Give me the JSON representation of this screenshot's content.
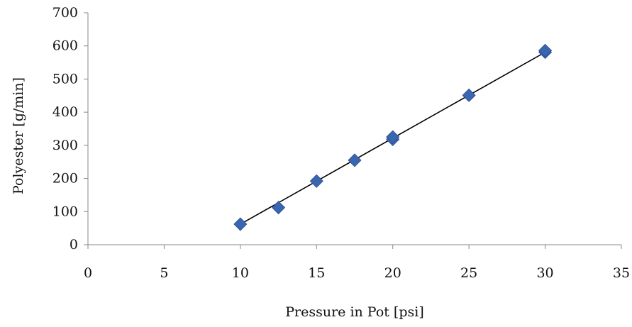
{
  "chart_data": {
    "type": "scatter",
    "title": "",
    "xlabel": "Pressure in Pot [psi]",
    "ylabel": "Polyester [g/min]",
    "xlim": [
      0,
      35
    ],
    "ylim": [
      0,
      700
    ],
    "xticks": [
      0,
      5,
      10,
      15,
      20,
      25,
      30,
      35
    ],
    "yticks": [
      0,
      100,
      200,
      300,
      400,
      500,
      600,
      700
    ],
    "grid": false,
    "legend": "none",
    "series": [
      {
        "marker": "diamond",
        "color": "#3a66b0",
        "points": [
          {
            "x": 10,
            "y": 62
          },
          {
            "x": 12.5,
            "y": 112
          },
          {
            "x": 15,
            "y": 192
          },
          {
            "x": 17.5,
            "y": 255
          },
          {
            "x": 20,
            "y": 318
          },
          {
            "x": 20,
            "y": 325
          },
          {
            "x": 25,
            "y": 451
          },
          {
            "x": 30,
            "y": 581
          },
          {
            "x": 30,
            "y": 586
          }
        ]
      }
    ],
    "trendline": {
      "type": "linear",
      "color": "#000000",
      "x": [
        10,
        30
      ],
      "y": [
        62,
        581
      ]
    }
  }
}
